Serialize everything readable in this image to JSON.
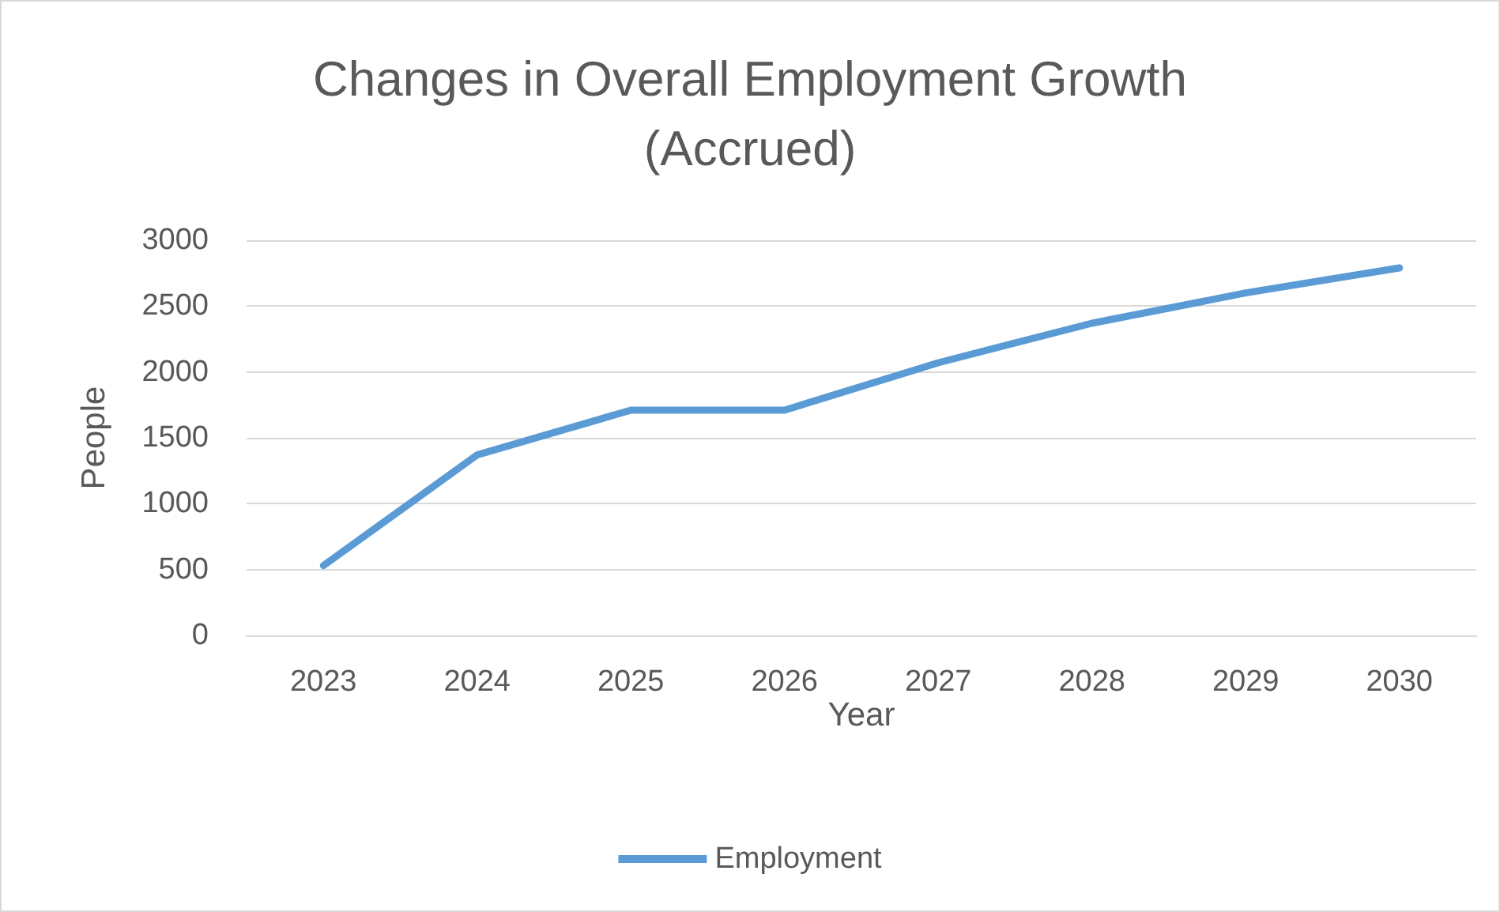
{
  "chart_data": {
    "type": "line",
    "title": "Changes in Overall Employment Growth\n(Accrued)",
    "xlabel": "Year",
    "ylabel": "People",
    "categories": [
      "2023",
      "2024",
      "2025",
      "2026",
      "2027",
      "2028",
      "2029",
      "2030"
    ],
    "series": [
      {
        "name": "Employment",
        "color": "#5b9bd5",
        "values": [
          530,
          1370,
          1710,
          1710,
          2070,
          2370,
          2600,
          2790
        ]
      }
    ],
    "ylim": [
      0,
      3000
    ],
    "yticks": [
      0,
      500,
      1000,
      1500,
      2000,
      2500,
      3000
    ],
    "grid": "y",
    "legend": "bottom",
    "marker": "none",
    "line_style": "solid"
  }
}
